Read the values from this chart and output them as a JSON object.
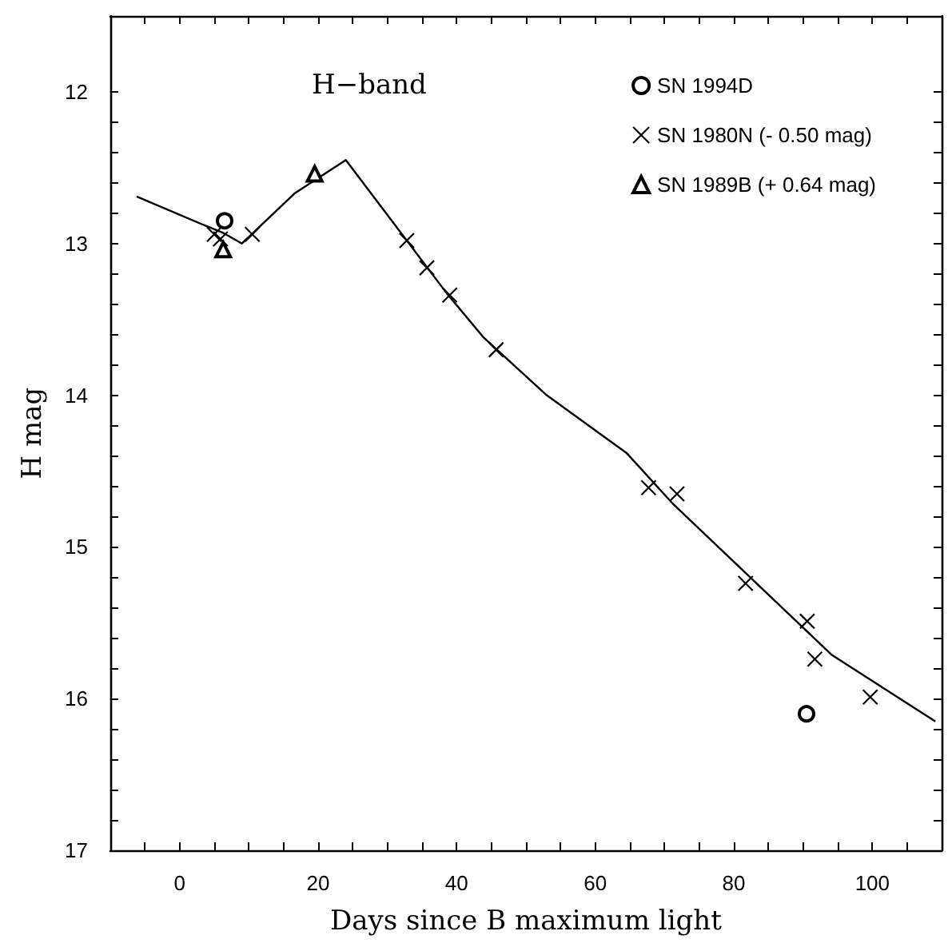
{
  "chart_data": {
    "type": "scatter",
    "xlabel": "Days since B maximum light",
    "ylabel": "H mag",
    "annotations": [
      "H−band"
    ],
    "xlim": [
      -10,
      110
    ],
    "xticks": [
      {
        "value": -5,
        "label": null
      },
      0,
      {
        "value": 5,
        "label": null
      },
      {
        "value": 10,
        "label": null
      },
      {
        "value": 15,
        "label": null
      },
      20,
      {
        "value": 25,
        "label": null
      },
      {
        "value": 30,
        "label": null
      },
      {
        "value": 35,
        "label": null
      },
      40,
      {
        "value": 45,
        "label": null
      },
      {
        "value": 50,
        "label": null
      },
      {
        "value": 55,
        "label": null
      },
      60,
      {
        "value": 65,
        "label": null
      },
      {
        "value": 70,
        "label": null
      },
      {
        "value": 75,
        "label": null
      },
      80,
      {
        "value": 85,
        "label": null
      },
      {
        "value": 90,
        "label": null
      },
      {
        "value": 95,
        "label": null
      },
      100,
      {
        "value": 105,
        "label": null
      }
    ],
    "ylim": [
      17,
      11.5
    ],
    "yticks": [
      12,
      {
        "value": 12.2,
        "label": null
      },
      {
        "value": 12.4,
        "label": null
      },
      {
        "value": 12.6,
        "label": null
      },
      {
        "value": 12.8,
        "label": null
      },
      13,
      {
        "value": 13.2,
        "label": null
      },
      {
        "value": 13.4,
        "label": null
      },
      {
        "value": 13.6,
        "label": null
      },
      {
        "value": 13.8,
        "label": null
      },
      14,
      {
        "value": 14.2,
        "label": null
      },
      {
        "value": 14.4,
        "label": null
      },
      {
        "value": 14.6,
        "label": null
      },
      {
        "value": 14.8,
        "label": null
      },
      15,
      {
        "value": 15.2,
        "label": null
      },
      {
        "value": 15.4,
        "label": null
      },
      {
        "value": 15.6,
        "label": null
      },
      {
        "value": 15.8,
        "label": null
      },
      16,
      {
        "value": 16.2,
        "label": null
      },
      {
        "value": 16.4,
        "label": null
      },
      {
        "value": 16.6,
        "label": null
      },
      {
        "value": 16.8,
        "label": null
      },
      17
    ],
    "grid": false,
    "legend": "top right",
    "series": [
      {
        "name": "SN 1994D",
        "marker": "circle",
        "color": "#000000",
        "x": [
          6.5,
          90.5
        ],
        "values": [
          12.85,
          16.1
        ]
      },
      {
        "name": "SN 1980N (- 0.50 mag)",
        "marker": "cross",
        "color": "#000000",
        "x": [
          5.0,
          5.9,
          10.5,
          32.8,
          35.7,
          39.0,
          45.7,
          67.7,
          71.8,
          81.7,
          90.6,
          91.7,
          99.7
        ],
        "values": [
          12.94,
          12.97,
          12.94,
          12.98,
          13.16,
          13.34,
          13.7,
          14.61,
          14.65,
          15.24,
          15.49,
          15.74,
          15.99
        ]
      },
      {
        "name": "SN 1989B (+ 0.64 mag)",
        "marker": "triangle",
        "color": "#000000",
        "x": [
          6.3,
          19.5
        ],
        "values": [
          13.04,
          12.54
        ]
      },
      {
        "type": "line",
        "marker": "none",
        "line_style": "solid",
        "color": "#000000",
        "x": [
          -6.2,
          3.6,
          6.3,
          9,
          16.6,
          24,
          38.6,
          43.9,
          53,
          64.5,
          71.3,
          94.1,
          109.1
        ],
        "values": [
          12.69,
          12.88,
          12.93,
          13.0,
          12.67,
          12.45,
          13.33,
          13.62,
          14.0,
          14.38,
          14.72,
          15.71,
          16.15
        ]
      }
    ]
  }
}
